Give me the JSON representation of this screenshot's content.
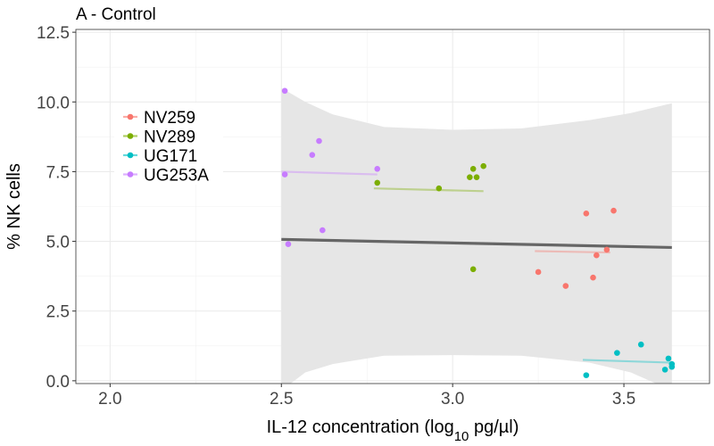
{
  "chart_data": {
    "type": "scatter",
    "title": "A - Control",
    "xlabel": {
      "main": "IL-12 concentration (log",
      "sub": "10",
      "tail": " pg/µl)"
    },
    "ylabel": "% NK cells",
    "xlim": [
      1.9,
      3.75
    ],
    "ylim": [
      -0.1,
      12.6
    ],
    "x_ticks": [
      2.0,
      2.5,
      3.0,
      3.5
    ],
    "x_tick_labels": [
      "2.0",
      "2.5",
      "3.0",
      "3.5"
    ],
    "y_ticks": [
      0.0,
      2.5,
      5.0,
      7.5,
      10.0,
      12.5
    ],
    "y_tick_labels": [
      "0.0",
      "2.5",
      "5.0",
      "7.5",
      "10.0",
      "12.5"
    ],
    "grid": true,
    "legend_position": "top-left",
    "series": [
      {
        "name": "NV259",
        "color": "#F8766D",
        "points": [
          [
            3.25,
            3.9
          ],
          [
            3.33,
            3.4
          ],
          [
            3.39,
            6.0
          ],
          [
            3.41,
            3.7
          ],
          [
            3.42,
            4.5
          ],
          [
            3.45,
            4.7
          ],
          [
            3.47,
            6.1
          ]
        ],
        "fit": [
          [
            3.24,
            4.65
          ],
          [
            3.46,
            4.6
          ]
        ]
      },
      {
        "name": "NV289",
        "color": "#7CAE00",
        "points": [
          [
            2.78,
            7.1
          ],
          [
            2.96,
            6.9
          ],
          [
            3.05,
            7.3
          ],
          [
            3.06,
            7.6
          ],
          [
            3.06,
            4.0
          ],
          [
            3.07,
            7.3
          ],
          [
            3.09,
            7.7
          ]
        ],
        "fit": [
          [
            2.77,
            6.9
          ],
          [
            3.09,
            6.8
          ]
        ]
      },
      {
        "name": "UG171",
        "color": "#00BFC4",
        "points": [
          [
            3.39,
            0.2
          ],
          [
            3.48,
            1.0
          ],
          [
            3.55,
            1.3
          ],
          [
            3.62,
            0.4
          ],
          [
            3.63,
            0.8
          ],
          [
            3.64,
            0.6
          ],
          [
            3.64,
            0.5
          ]
        ],
        "fit": [
          [
            3.38,
            0.75
          ],
          [
            3.64,
            0.65
          ]
        ]
      },
      {
        "name": "UG253A",
        "color": "#C77CFF",
        "points": [
          [
            2.51,
            7.4
          ],
          [
            2.51,
            10.4
          ],
          [
            2.52,
            4.9
          ],
          [
            2.59,
            8.1
          ],
          [
            2.61,
            8.6
          ],
          [
            2.62,
            5.4
          ],
          [
            2.78,
            7.6
          ]
        ],
        "fit": [
          [
            2.5,
            7.5
          ],
          [
            2.78,
            7.4
          ]
        ]
      }
    ],
    "overall_fit": {
      "color": "#666666",
      "line": [
        [
          2.5,
          5.07
        ],
        [
          3.64,
          4.78
        ]
      ],
      "ci_band": {
        "x": [
          2.5,
          2.57,
          2.65,
          2.8,
          3.0,
          3.2,
          3.4,
          3.52,
          3.64
        ],
        "upper": [
          10.5,
          10.0,
          9.55,
          9.1,
          9.0,
          9.05,
          9.35,
          9.6,
          9.95
        ],
        "lower": [
          -0.35,
          0.3,
          0.6,
          0.9,
          0.92,
          0.9,
          0.65,
          0.3,
          -0.35
        ]
      },
      "band_color": "#e6e6e6"
    }
  }
}
